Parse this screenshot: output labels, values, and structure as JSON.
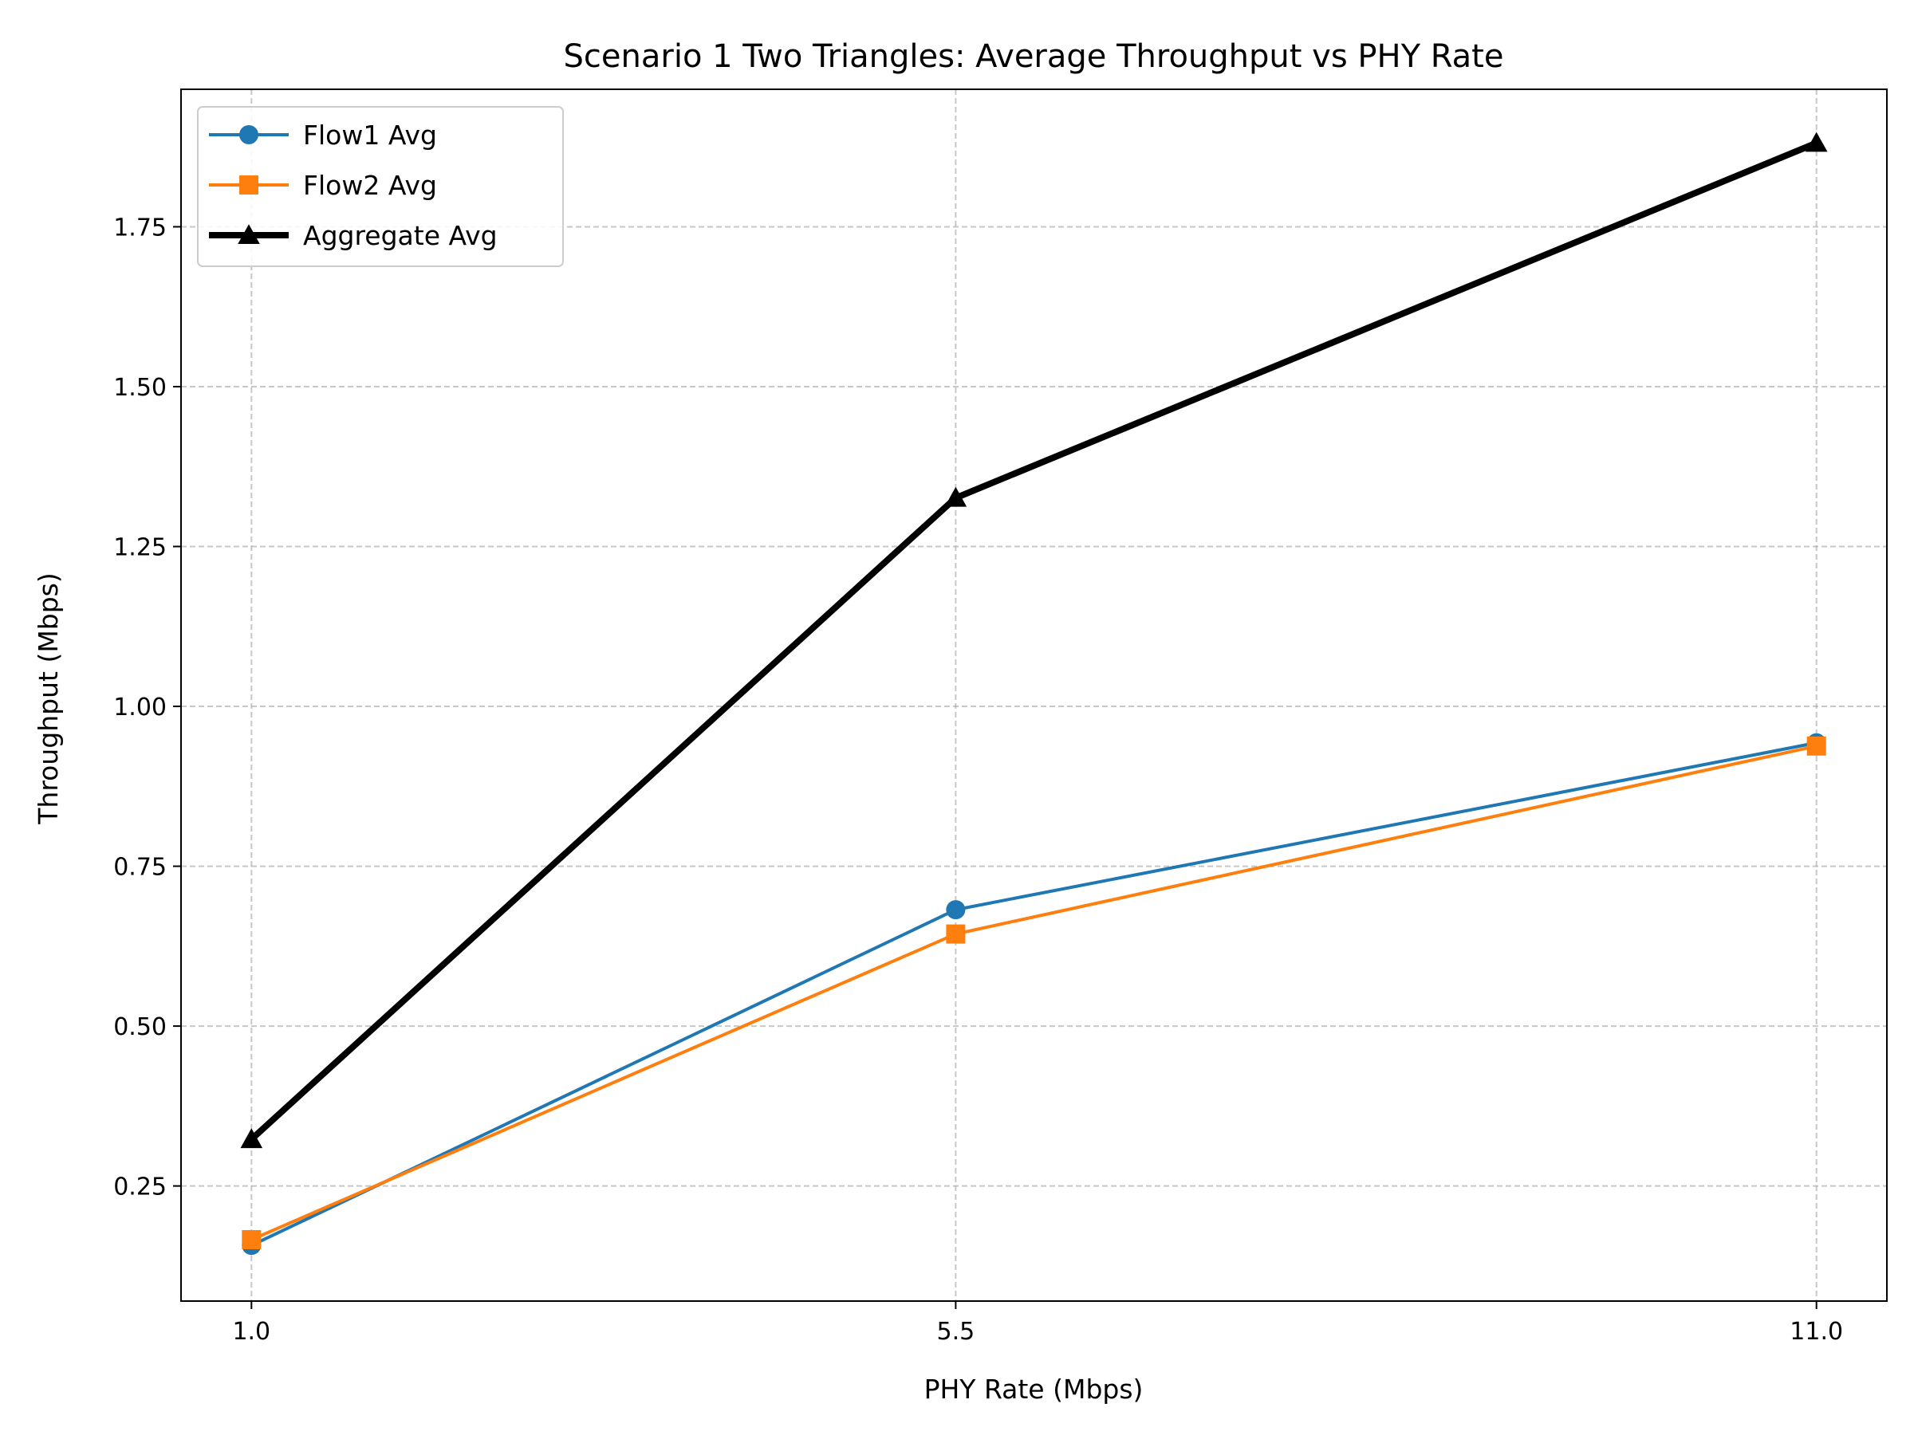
{
  "chart_data": {
    "type": "line",
    "title": "Scenario 1 Two Triangles: Average Throughput vs PHY Rate",
    "xlabel": "PHY Rate (Mbps)",
    "ylabel": "Throughput (Mbps)",
    "x": [
      1.0,
      5.5,
      11.0
    ],
    "x_tick_labels": [
      "1.0",
      "5.5",
      "11.0"
    ],
    "xlim": [
      0.55,
      11.45
    ],
    "ylim": [
      0.07,
      1.965
    ],
    "y_ticks": [
      0.25,
      0.5,
      0.75,
      1.0,
      1.25,
      1.5,
      1.75
    ],
    "y_tick_labels": [
      "0.25",
      "0.50",
      "0.75",
      "1.00",
      "1.25",
      "1.50",
      "1.75"
    ],
    "grid": true,
    "legend_position": "top-left",
    "series": [
      {
        "name": "Flow1 Avg",
        "values": [
          0.157,
          0.682,
          0.943
        ],
        "color": "#1f77b4",
        "marker": "circle"
      },
      {
        "name": "Flow2 Avg",
        "values": [
          0.166,
          0.644,
          0.938
        ],
        "color": "#ff7f0e",
        "marker": "square"
      },
      {
        "name": "Aggregate Avg",
        "values": [
          0.323,
          1.326,
          1.881
        ],
        "color": "#000000",
        "marker": "triangle"
      }
    ]
  }
}
